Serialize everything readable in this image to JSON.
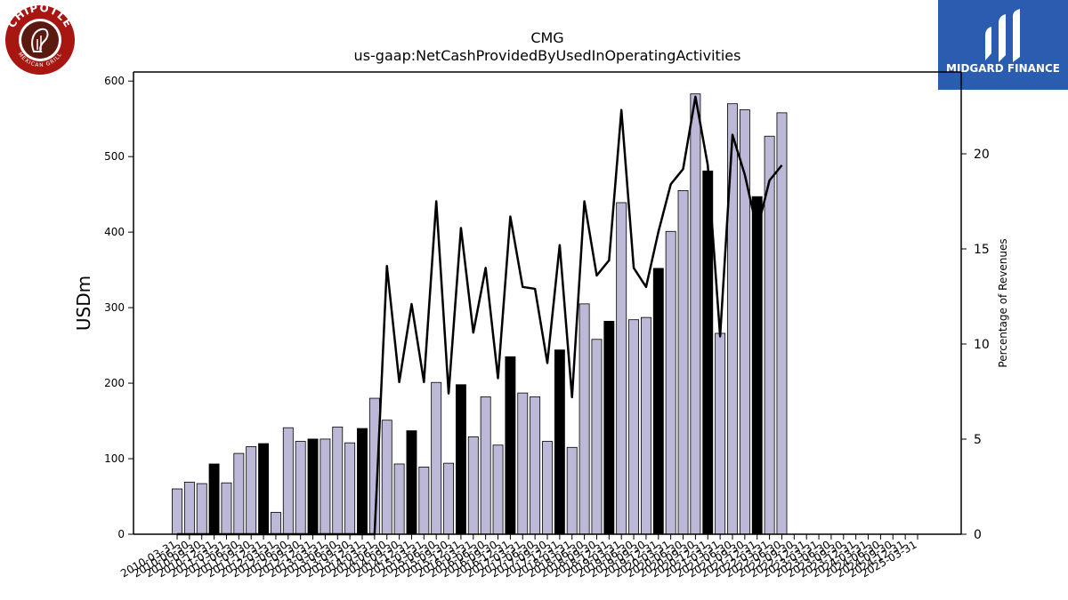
{
  "header": {
    "title": "CMG",
    "subtitle": "us-gaap:NetCashProvidedByUsedInOperatingActivities"
  },
  "logo_left": {
    "ring_text_top": "CHIPOTLE",
    "ring_text_bottom": "MEXICAN GRILL",
    "color": "#a81612"
  },
  "logo_right": {
    "name": "MIDGARD FINANCE",
    "color": "#2a5db0",
    "icon": "midgard-m-icon"
  },
  "chart_data": {
    "type": "bar",
    "title": "CMG",
    "subtitle": "us-gaap:NetCashProvidedByUsedInOperatingActivities",
    "ylabel": "USDm",
    "y2label": "Percentage of Revenues",
    "ylim": [
      0,
      612
    ],
    "y2lim": [
      0,
      24.3
    ],
    "yticks": [
      0,
      100,
      200,
      300,
      400,
      500,
      600
    ],
    "y2ticks": [
      0,
      5,
      10,
      15,
      20
    ],
    "grid": false,
    "colors": {
      "bar": "#bcb8d8",
      "bar_q4": "#000000",
      "line": "#000000"
    },
    "categories": [
      "2010-03-31",
      "2010-06-30",
      "2010-09-30",
      "2010-12-31",
      "2011-03-31",
      "2011-06-30",
      "2011-09-30",
      "2011-12-31",
      "2012-03-31",
      "2012-06-30",
      "2012-09-30",
      "2012-12-31",
      "2013-03-31",
      "2013-06-30",
      "2013-09-30",
      "2013-12-31",
      "2014-03-31",
      "2014-06-30",
      "2014-09-30",
      "2014-12-31",
      "2015-03-31",
      "2015-06-30",
      "2015-09-30",
      "2015-12-31",
      "2016-03-31",
      "2016-06-30",
      "2016-09-30",
      "2016-12-31",
      "2017-03-31",
      "2017-06-30",
      "2017-09-30",
      "2017-12-31",
      "2018-03-31",
      "2018-06-30",
      "2018-09-30",
      "2018-12-31",
      "2019-03-31",
      "2019-06-30",
      "2019-09-30",
      "2019-12-31",
      "2020-03-31",
      "2020-06-30",
      "2020-09-30",
      "2020-12-31",
      "2021-03-31",
      "2021-06-30",
      "2021-09-30",
      "2021-12-31",
      "2022-03-31",
      "2022-06-30",
      "2022-09-30",
      "2022-12-31",
      "2023-03-31",
      "2023-06-30",
      "2023-09-30",
      "2023-12-31",
      "2024-03-31",
      "2024-06-30",
      "2024-09-30",
      "2024-12-31",
      "2025-03-31"
    ],
    "tick_labels": [
      "2010-03-31",
      "2010-06-30",
      "2010-09-30",
      "2010-12-31",
      "2011-03-31",
      "2011-06-30",
      "2011-09-30",
      "2011-12-31",
      "2012-03-31",
      "2012-06-30",
      "2012-09-30",
      "2012-12-31",
      "2013-03-31",
      "2013-06-30",
      "2013-09-30",
      "2013-12-31",
      "2014-03-31",
      "2014-06-30",
      "2014-09-30",
      "2014-12-31",
      "2015-03-31",
      "2015-06-30",
      "2015-09-30",
      "2015-12-31",
      "2016-03-31",
      "2016-06-30",
      "2016-09-30",
      "2016-12-31",
      "2017-03-31",
      "2017-06-30",
      "2017-09-30",
      "2017-12-31",
      "2018-03-31",
      "2018-06-30",
      "2018-09-30",
      "2018-12-31",
      "2019-03-31",
      "2019-06-30",
      "2019-09-30",
      "2019-12-31",
      "2020-03-31",
      "2020-06-30",
      "2020-09-30",
      "2020-12-31",
      "2021-03-31",
      "2021-06-30",
      "2021-09-30",
      "2021-12-31",
      "2022-03-31",
      "2022-06-30",
      "2022-09-30",
      "2022-12-31",
      "2023-03-31",
      "2023-06-30",
      "2023-09-30",
      "2023-12-31",
      "2024-03-31",
      "2024-06-30",
      "2024-09-30",
      "2024-12-31",
      "2025-03-31"
    ],
    "series": [
      {
        "axis": "left",
        "type": "bar",
        "values": [
          60,
          69,
          67,
          93,
          68,
          107,
          116,
          120,
          29,
          141,
          123,
          126,
          126,
          142,
          121,
          140,
          180,
          151,
          93,
          137,
          89,
          201,
          94,
          198,
          129,
          182,
          118,
          235,
          187,
          182,
          123,
          244,
          115,
          305,
          258,
          282,
          439,
          284,
          287,
          352,
          401,
          455,
          583,
          481,
          266,
          570,
          562,
          447,
          527,
          558,
          0,
          0,
          0,
          0,
          0,
          0,
          0,
          0,
          0,
          0,
          0
        ]
      },
      {
        "axis": "right",
        "type": "line",
        "values": [
          0,
          0,
          0,
          0,
          0,
          0,
          0,
          0,
          0,
          0,
          0,
          0,
          0,
          0,
          0,
          0,
          0,
          14.1,
          8.0,
          12.1,
          8.0,
          17.5,
          7.4,
          16.1,
          10.6,
          14.0,
          8.2,
          16.7,
          13.0,
          12.9,
          9.0,
          15.2,
          7.2,
          17.5,
          13.6,
          14.4,
          22.3,
          14.0,
          13.0,
          15.9,
          18.4,
          19.2,
          23.0,
          19.4,
          10.4,
          21.0,
          18.9,
          16.0,
          18.6,
          19.4,
          null,
          null,
          null,
          null,
          null,
          null,
          null,
          null,
          null,
          null,
          null
        ]
      }
    ]
  }
}
